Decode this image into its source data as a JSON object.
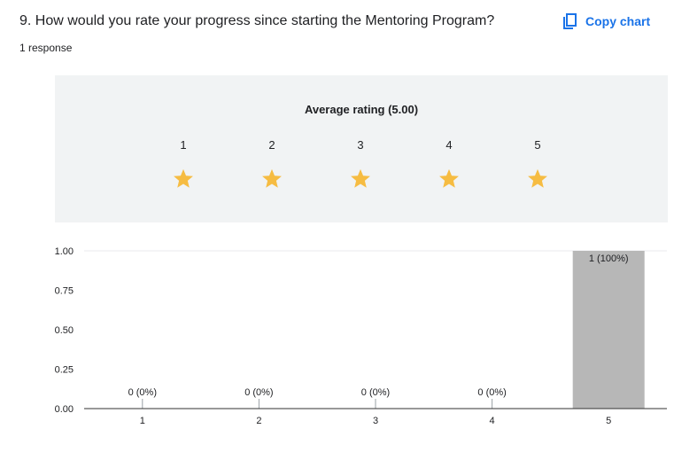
{
  "header": {
    "question": "9. How would you rate your progress since starting the Mentoring Program?",
    "response_count": "1 response",
    "copy_chart_label": "Copy chart",
    "copy_icon": "copy-icon"
  },
  "rating": {
    "average_label": "Average rating (5.00)",
    "average_value": 5.0,
    "max_stars": 5,
    "scale": [
      "1",
      "2",
      "3",
      "4",
      "5"
    ],
    "star_icon": "star-icon",
    "star_color": "#f6bc42"
  },
  "colors": {
    "accent": "#1a73e8",
    "bar": "#b7b7b7",
    "panel": "#f1f3f4"
  },
  "chart_data": {
    "type": "bar",
    "categories": [
      "1",
      "2",
      "3",
      "4",
      "5"
    ],
    "values": [
      0,
      0,
      0,
      0,
      1
    ],
    "data_labels": [
      "0 (0%)",
      "0 (0%)",
      "0 (0%)",
      "0 (0%)",
      "1 (100%)"
    ],
    "ylim": [
      0,
      1
    ],
    "yticks": [
      "0.00",
      "0.25",
      "0.50",
      "0.75",
      "1.00"
    ],
    "xlabel": "",
    "ylabel": "",
    "grid": false
  }
}
